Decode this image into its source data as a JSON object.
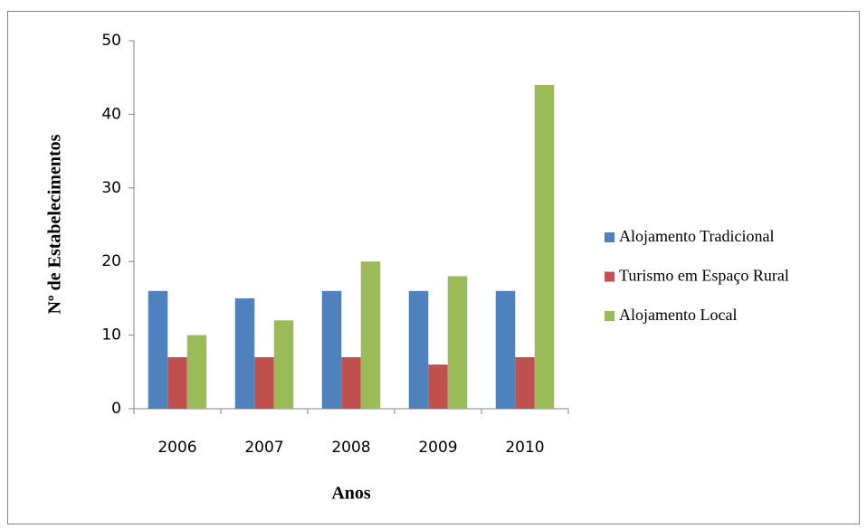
{
  "chart_data": {
    "type": "bar",
    "x_label": "Anos",
    "y_label": "Nº de Estabelecimentos",
    "categories": [
      "2006",
      "2007",
      "2008",
      "2009",
      "2010"
    ],
    "series": [
      {
        "name": "Alojamento Tradicional",
        "color": "#4f81bd",
        "values": [
          16,
          15,
          16,
          16,
          16
        ]
      },
      {
        "name": "Turismo em Espaço Rural",
        "color": "#c0504d",
        "values": [
          7,
          7,
          7,
          6,
          7
        ]
      },
      {
        "name": "Alojamento Local",
        "color": "#9bbb59",
        "values": [
          10,
          12,
          20,
          18,
          44
        ]
      }
    ],
    "ylim": [
      0,
      50
    ],
    "yticks": [
      0,
      10,
      20,
      30,
      40,
      50
    ],
    "grid": false,
    "legend": "right"
  }
}
